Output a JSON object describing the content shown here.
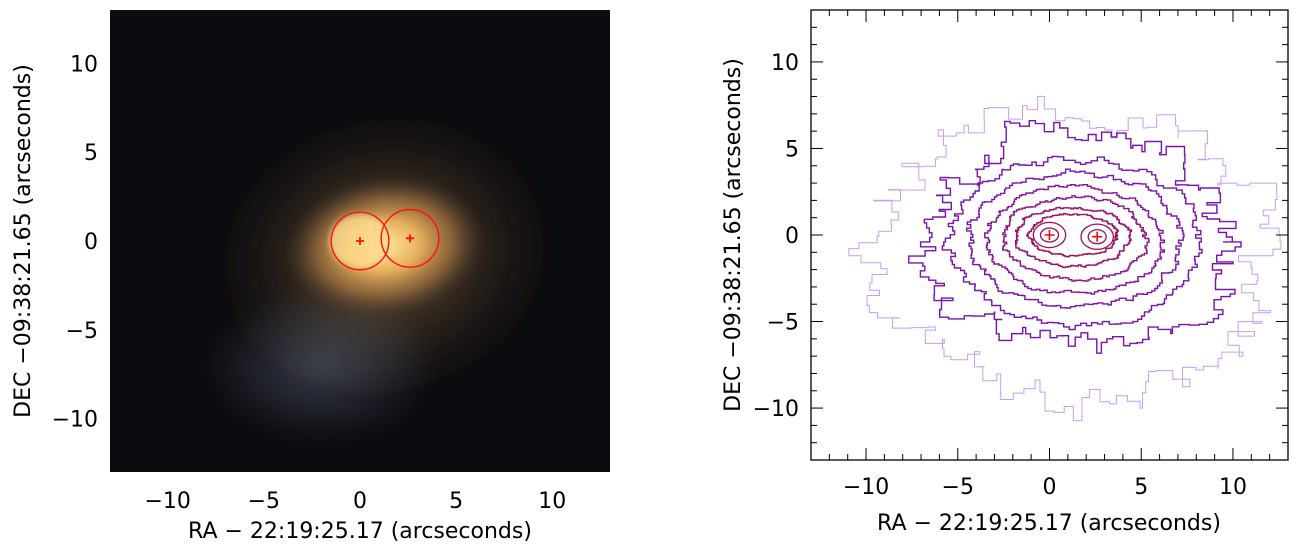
{
  "chart_data": [
    {
      "type": "image",
      "xlabel": "RA − 22:19:25.17 (arcseconds)",
      "ylabel": "DEC −09:38:21.65 (arcseconds)",
      "xlim": [
        -13,
        13
      ],
      "ylim": [
        -13,
        13
      ],
      "xticks": [
        -10,
        -5,
        0,
        5,
        10
      ],
      "yticks": [
        -10,
        -5,
        0,
        5,
        10
      ],
      "xtick_labels": [
        "−10",
        "−5",
        "0",
        "5",
        "10"
      ],
      "ytick_labels": [
        "−10",
        "−5",
        "0",
        "5",
        "10"
      ],
      "markers": [
        {
          "x": 0.0,
          "y": 0.0,
          "symbol": "+",
          "circle_radius": 1.5
        },
        {
          "x": 2.6,
          "y": 0.15,
          "symbol": "+",
          "circle_radius": 1.5
        }
      ],
      "colors": {
        "background": "#0c0b10",
        "galaxy_core": "#f0c060",
        "markers": "#ff1010"
      }
    },
    {
      "type": "contour",
      "xlabel": "RA − 22:19:25.17 (arcseconds)",
      "ylabel": "DEC −09:38:21.65 (arcseconds)",
      "xlim": [
        -13,
        13
      ],
      "ylim": [
        -13,
        13
      ],
      "xticks": [
        -10,
        -5,
        0,
        5,
        10
      ],
      "yticks": [
        -10,
        -5,
        0,
        5,
        10
      ],
      "xtick_labels": [
        "−10",
        "−5",
        "0",
        "5",
        "10"
      ],
      "ytick_labels": [
        "−10",
        "−5",
        "0",
        "5",
        "10"
      ],
      "markers": [
        {
          "x": 0.0,
          "y": 0.0,
          "symbol": "+"
        },
        {
          "x": 2.6,
          "y": -0.1,
          "symbol": "+"
        }
      ],
      "contours": [
        {
          "level": 1,
          "center": [
            1.3,
            -1.2
          ],
          "semi_axes": [
            10.8,
            8.5
          ]
        },
        {
          "level": 2,
          "center": [
            1.4,
            -0.4
          ],
          "semi_axes": [
            8.4,
            6.2
          ]
        },
        {
          "level": 3,
          "center": [
            1.4,
            -0.4
          ],
          "semi_axes": [
            6.8,
            4.8
          ]
        },
        {
          "level": 4,
          "center": [
            1.4,
            -0.3
          ],
          "semi_axes": [
            5.8,
            3.9
          ]
        },
        {
          "level": 5,
          "center": [
            1.4,
            -0.3
          ],
          "semi_axes": [
            4.8,
            3.1
          ]
        },
        {
          "level": 6,
          "center": [
            1.4,
            -0.2
          ],
          "semi_axes": [
            3.9,
            2.4
          ]
        },
        {
          "level": 7,
          "center": [
            1.3,
            -0.1
          ],
          "semi_axes": [
            3.1,
            1.7
          ]
        },
        {
          "level": 8,
          "center": [
            1.3,
            0.0
          ],
          "semi_axes": [
            2.4,
            1.2
          ]
        }
      ],
      "colors": {
        "outer_contour": "#c79cf2",
        "inner_contour": "#7a10b0",
        "peak_contour": "#a0105a",
        "markers": "#e01010"
      }
    }
  ]
}
